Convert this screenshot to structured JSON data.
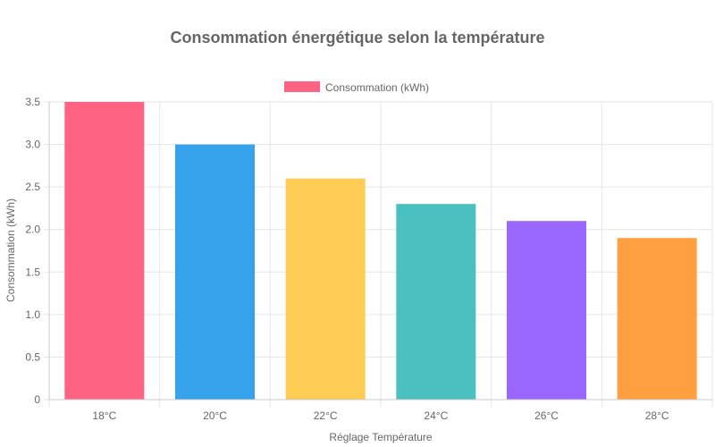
{
  "chart_data": {
    "type": "bar",
    "title": "Consommation énergétique selon la température",
    "xlabel": "Réglage Température",
    "ylabel": "Consommation (kWh)",
    "categories": [
      "18°C",
      "20°C",
      "22°C",
      "24°C",
      "26°C",
      "28°C"
    ],
    "series": [
      {
        "name": "Consommation (kWh)",
        "values": [
          3.5,
          3.0,
          2.6,
          2.3,
          2.1,
          1.9
        ]
      }
    ],
    "colors": [
      "#ff6384",
      "#36a2eb",
      "#ffcd56",
      "#4bc0c0",
      "#9966ff",
      "#ff9f40"
    ],
    "legend_color": "#ff6384",
    "ylim": [
      0,
      3.5
    ],
    "yticks": [
      0,
      0.5,
      1.0,
      1.5,
      2.0,
      2.5,
      3.0,
      3.5
    ],
    "ytick_labels": [
      "0",
      "0.5",
      "1.0",
      "1.5",
      "2.0",
      "2.5",
      "3.0",
      "3.5"
    ],
    "grid": true,
    "legend_position": "top-center"
  }
}
